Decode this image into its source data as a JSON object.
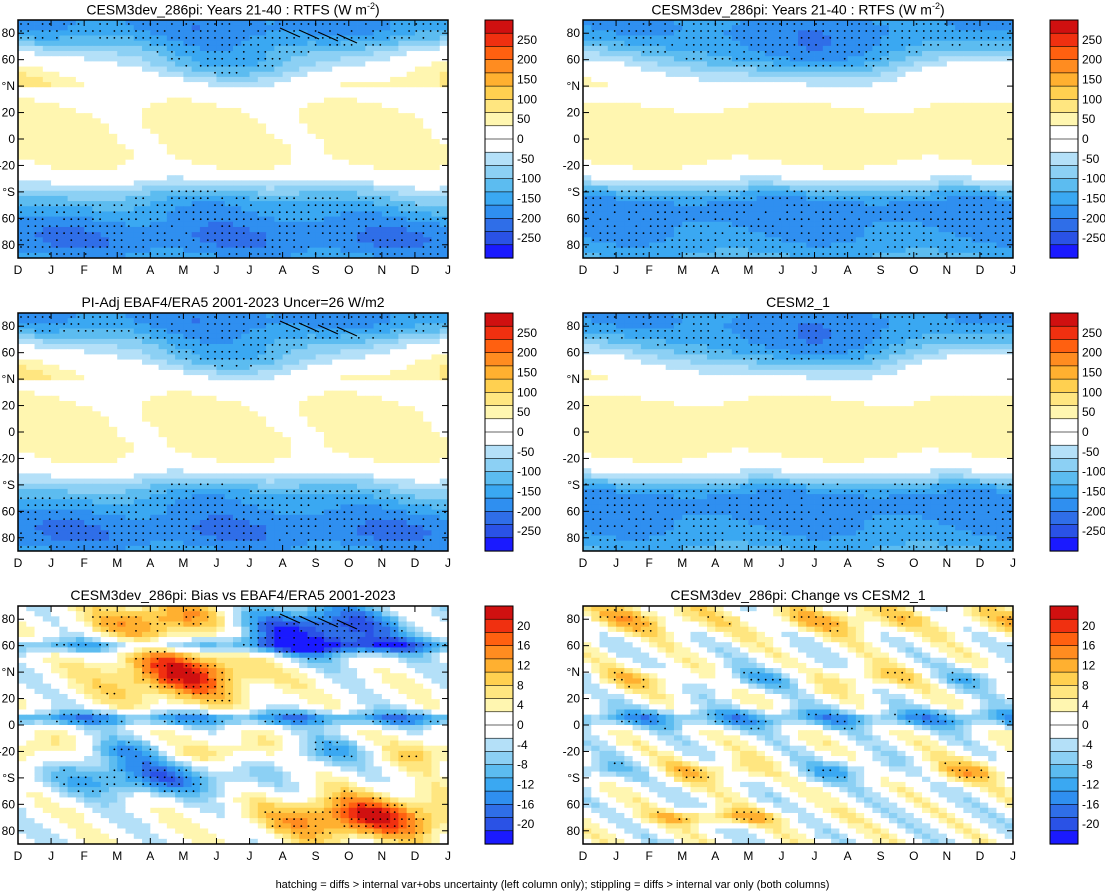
{
  "footer_note": "hatching = diffs > internal var+obs uncertainty (left column only); stippling = diffs > internal var only (both columns)",
  "chart_data": [
    {
      "type": "heatmap",
      "title": "CESM3dev_286pi: Years 21-40 : RTFS (W m",
      "title_sup": "-2",
      "title_end": ")",
      "x_labels": [
        "D",
        "J",
        "F",
        "M",
        "A",
        "M",
        "J",
        "J",
        "A",
        "S",
        "O",
        "N",
        "D",
        "J"
      ],
      "y_labels": [
        "80",
        "60",
        "°N",
        "20",
        "0",
        "-20",
        "°S",
        "60",
        "80"
      ],
      "y_values": [
        80,
        60,
        40,
        20,
        0,
        -20,
        -40,
        -60,
        -80
      ],
      "ylim": [
        90,
        -90
      ],
      "colorbar": {
        "ticks": [
          "250",
          "200",
          "150",
          "100",
          "50",
          "0",
          "-50",
          "-100",
          "-150",
          "-200",
          "-250"
        ],
        "range": [
          -275,
          275
        ]
      },
      "field": "rtfs",
      "hatch": true
    },
    {
      "type": "heatmap",
      "title": "CESM3dev_286pi: Years 21-40 : RTFS (W m",
      "title_sup": "-2",
      "title_end": ")",
      "x_labels": [
        "D",
        "J",
        "F",
        "M",
        "A",
        "M",
        "J",
        "J",
        "A",
        "S",
        "O",
        "N",
        "D",
        "J"
      ],
      "y_labels": [
        "80",
        "60",
        "°N",
        "20",
        "0",
        "-20",
        "°S",
        "60",
        "80"
      ],
      "y_values": [
        80,
        60,
        40,
        20,
        0,
        -20,
        -40,
        -60,
        -80
      ],
      "ylim": [
        90,
        -90
      ],
      "colorbar": {
        "ticks": [
          "250",
          "200",
          "150",
          "100",
          "50",
          "0",
          "-50",
          "-100",
          "-150",
          "-200",
          "-250"
        ],
        "range": [
          -275,
          275
        ]
      },
      "field": "rtfs2",
      "hatch": false
    },
    {
      "type": "heatmap",
      "title": "PI-Adj EBAF4/ERA5 2001-2023 Uncer=26 W/m2",
      "x_labels": [
        "D",
        "J",
        "F",
        "M",
        "A",
        "M",
        "J",
        "J",
        "A",
        "S",
        "O",
        "N",
        "D",
        "J"
      ],
      "y_labels": [
        "80",
        "60",
        "°N",
        "20",
        "0",
        "-20",
        "°S",
        "60",
        "80"
      ],
      "y_values": [
        80,
        60,
        40,
        20,
        0,
        -20,
        -40,
        -60,
        -80
      ],
      "ylim": [
        90,
        -90
      ],
      "colorbar": {
        "ticks": [
          "250",
          "200",
          "150",
          "100",
          "50",
          "0",
          "-50",
          "-100",
          "-150",
          "-200",
          "-250"
        ],
        "range": [
          -275,
          275
        ]
      },
      "field": "rtfs",
      "hatch": true
    },
    {
      "type": "heatmap",
      "title": "CESM2_1",
      "x_labels": [
        "D",
        "J",
        "F",
        "M",
        "A",
        "M",
        "J",
        "J",
        "A",
        "S",
        "O",
        "N",
        "D",
        "J"
      ],
      "y_labels": [
        "80",
        "60",
        "°N",
        "20",
        "0",
        "-20",
        "°S",
        "60",
        "80"
      ],
      "y_values": [
        80,
        60,
        40,
        20,
        0,
        -20,
        -40,
        -60,
        -80
      ],
      "ylim": [
        90,
        -90
      ],
      "colorbar": {
        "ticks": [
          "250",
          "200",
          "150",
          "100",
          "50",
          "0",
          "-50",
          "-100",
          "-150",
          "-200",
          "-250"
        ],
        "range": [
          -275,
          275
        ]
      },
      "field": "rtfs2",
      "hatch": false
    },
    {
      "type": "heatmap",
      "title": "CESM3dev_286pi: Bias vs EBAF4/ERA5 2001-2023",
      "x_labels": [
        "D",
        "J",
        "F",
        "M",
        "A",
        "M",
        "J",
        "J",
        "A",
        "S",
        "O",
        "N",
        "D",
        "J"
      ],
      "y_labels": [
        "80",
        "60",
        "°N",
        "20",
        "0",
        "-20",
        "°S",
        "60",
        "80"
      ],
      "y_values": [
        80,
        60,
        40,
        20,
        0,
        -20,
        -40,
        -60,
        -80
      ],
      "ylim": [
        90,
        -90
      ],
      "colorbar": {
        "ticks": [
          "20",
          "16",
          "12",
          "8",
          "4",
          "0",
          "-4",
          "-8",
          "-12",
          "-16",
          "-20"
        ],
        "range": [
          -22,
          22
        ]
      },
      "field": "bias",
      "hatch": true
    },
    {
      "type": "heatmap",
      "title": "CESM3dev_286pi: Change vs CESM2_1",
      "x_labels": [
        "D",
        "J",
        "F",
        "M",
        "A",
        "M",
        "J",
        "J",
        "A",
        "S",
        "O",
        "N",
        "D",
        "J"
      ],
      "y_labels": [
        "80",
        "60",
        "°N",
        "20",
        "0",
        "-20",
        "°S",
        "60",
        "80"
      ],
      "y_values": [
        80,
        60,
        40,
        20,
        0,
        -20,
        -40,
        -60,
        -80
      ],
      "ylim": [
        90,
        -90
      ],
      "colorbar": {
        "ticks": [
          "20",
          "16",
          "12",
          "8",
          "4",
          "0",
          "-4",
          "-8",
          "-12",
          "-16",
          "-20"
        ],
        "range": [
          -22,
          22
        ]
      },
      "field": "change",
      "hatch": false
    }
  ],
  "palette": [
    "#1a1aff",
    "#2a52e6",
    "#2f6ee8",
    "#2f8ff0",
    "#3aa8f2",
    "#5cbcf0",
    "#8cd0f4",
    "#b4e0f8",
    "#ffffff",
    "#ffffff",
    "#fff6b0",
    "#ffe680",
    "#ffd050",
    "#ffb030",
    "#ff8c20",
    "#ff6010",
    "#f03010",
    "#d01010"
  ]
}
